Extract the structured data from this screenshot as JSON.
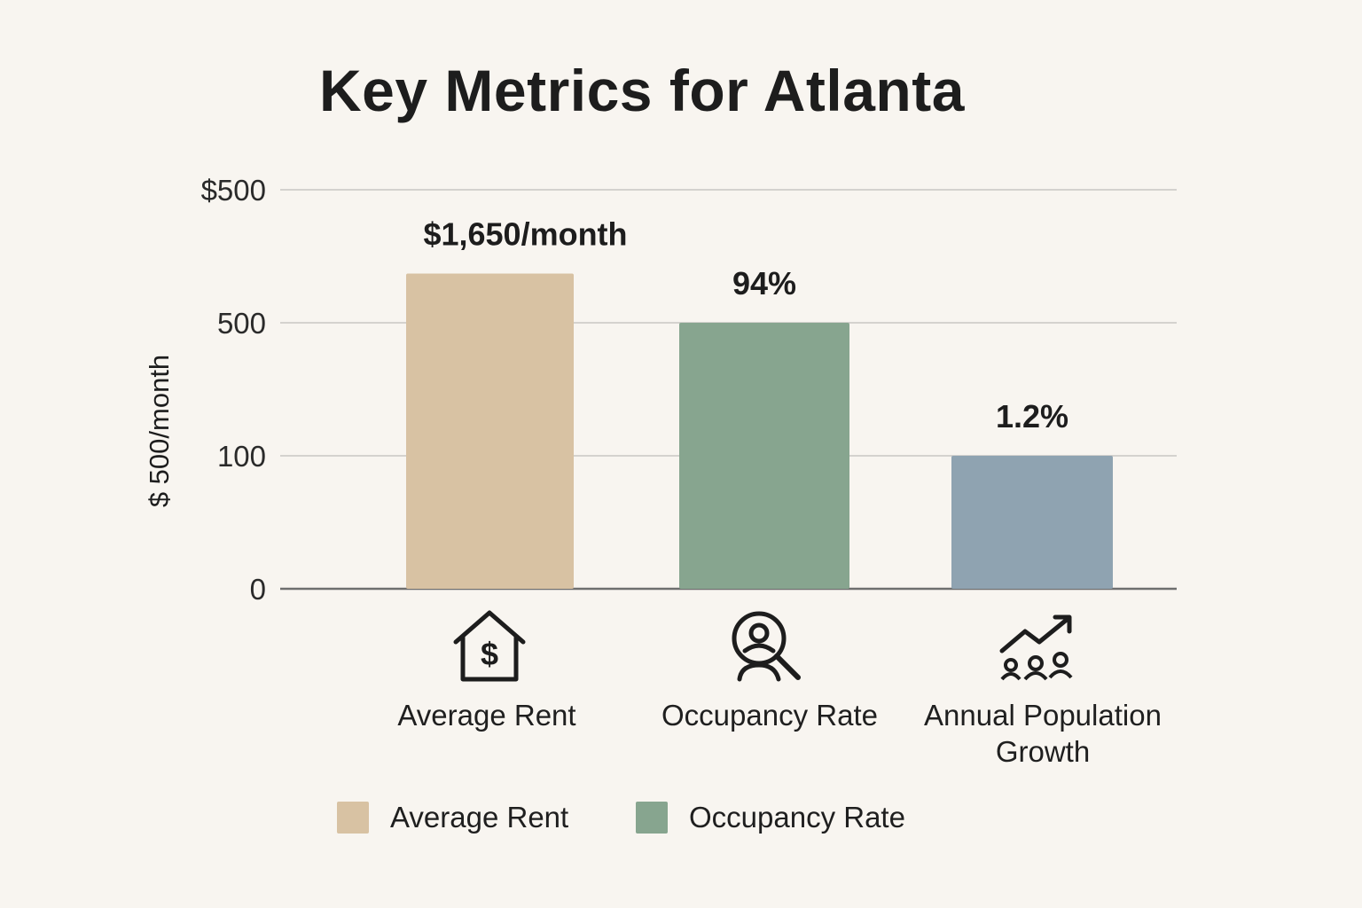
{
  "colors": {
    "background": "#f8f5f0",
    "rent": "#d8c2a3",
    "occupancy": "#87a58f",
    "growth": "#8fa3b1",
    "grid": "#d4d2ce",
    "axis": "#6e6e6e",
    "text": "#1d1d1d"
  },
  "chart_data": {
    "type": "bar",
    "title": "Key Metrics for Atlanta",
    "ylabel": "$ 500/month",
    "xlabel": "",
    "ytick_labels": [
      "0",
      "100",
      "500",
      "$500"
    ],
    "categories": [
      "Average Rent",
      "Occupancy Rate",
      "Annual Population Growth"
    ],
    "category_display": [
      [
        "Average Rent"
      ],
      [
        "Occupancy Rate"
      ],
      [
        "Annual Population",
        "Growth"
      ]
    ],
    "category_icons": [
      "house-dollar-icon",
      "person-search-icon",
      "population-growth-icon"
    ],
    "relative_heights": [
      2.37,
      2.0,
      1.0
    ],
    "axis_levels": 3,
    "data_labels": [
      "$1,650/month",
      "94%",
      "1.2%"
    ],
    "bar_colors": [
      "#d8c2a3",
      "#87a58f",
      "#8fa3b1"
    ],
    "grid": true,
    "legend": {
      "position": "bottom",
      "entries": [
        {
          "label": "Average Rent",
          "color": "#d8c2a3"
        },
        {
          "label": "Occupancy Rate",
          "color": "#87a58f"
        }
      ]
    }
  }
}
